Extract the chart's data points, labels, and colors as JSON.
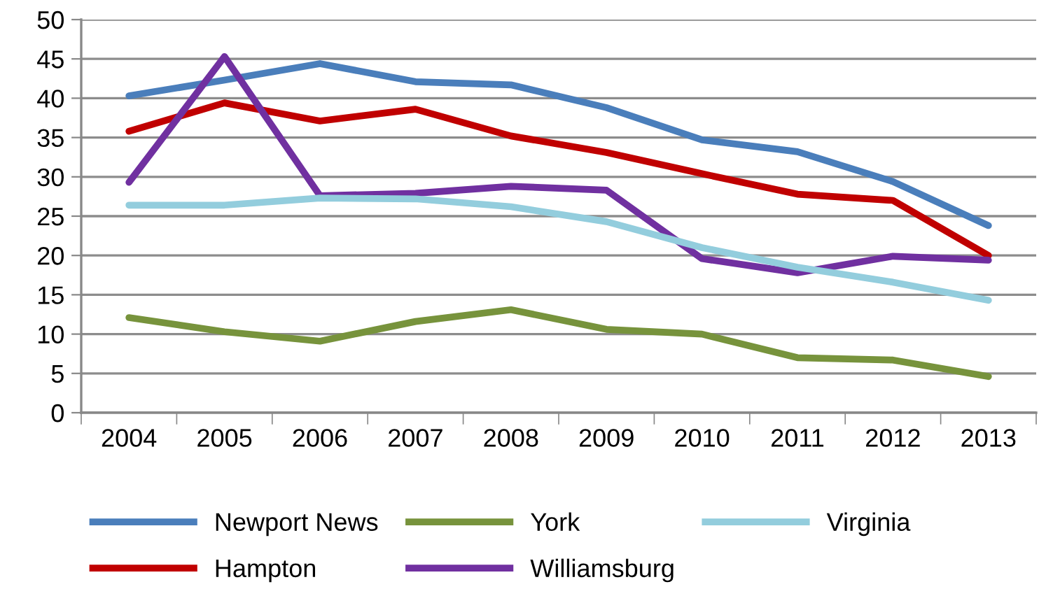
{
  "chart_data": {
    "type": "line",
    "categories": [
      "2004",
      "2005",
      "2006",
      "2007",
      "2008",
      "2009",
      "2010",
      "2011",
      "2012",
      "2013"
    ],
    "series": [
      {
        "name": "Newport News",
        "color": "#4a7ebb",
        "values": [
          40.3,
          42.3,
          44.4,
          42.1,
          41.7,
          38.8,
          34.7,
          33.2,
          29.4,
          23.8
        ]
      },
      {
        "name": "Hampton",
        "color": "#c00000",
        "values": [
          35.8,
          39.4,
          37.1,
          38.6,
          35.2,
          33.1,
          30.4,
          27.8,
          27.0,
          20.0
        ]
      },
      {
        "name": "York",
        "color": "#77933c",
        "values": [
          12.1,
          10.3,
          9.1,
          11.6,
          13.1,
          10.6,
          10.0,
          7.0,
          6.7,
          4.6
        ]
      },
      {
        "name": "Williamsburg",
        "color": "#7030a0",
        "values": [
          29.3,
          45.3,
          27.6,
          27.9,
          28.8,
          28.3,
          19.6,
          17.8,
          19.9,
          19.4
        ]
      },
      {
        "name": "Virginia",
        "color": "#93cddd",
        "values": [
          26.4,
          26.4,
          27.3,
          27.2,
          26.2,
          24.3,
          21.0,
          18.5,
          16.6,
          14.3
        ]
      }
    ],
    "ylim": [
      0,
      50
    ],
    "yticks": [
      0,
      5,
      10,
      15,
      20,
      25,
      30,
      35,
      40,
      45,
      50
    ],
    "grid": "y",
    "legend": "bottom",
    "marker": "none",
    "line_style": "solid"
  }
}
